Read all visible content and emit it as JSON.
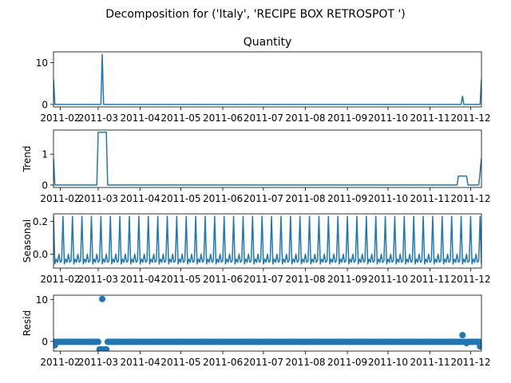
{
  "figure": {
    "suptitle": "Decomposition for ('Italy', 'RECIPE BOX RETROSPOT ')"
  },
  "chart_data": [
    {
      "type": "line",
      "title": "Quantity",
      "ylabel": "",
      "color": "#1f77b4",
      "xlim": [
        "2011-01-27",
        "2011-12-09"
      ],
      "ylim": [
        -0.6,
        12.6
      ],
      "yticks": [
        0,
        10
      ],
      "xticks": [
        "2011-02",
        "2011-03",
        "2011-04",
        "2011-05",
        "2011-06",
        "2011-07",
        "2011-08",
        "2011-09",
        "2011-10",
        "2011-11",
        "2011-12"
      ],
      "points": [
        {
          "x": "2011-01-27",
          "y": 6
        },
        {
          "x": "2011-01-28",
          "y": 0
        },
        {
          "x": "2011-03-03",
          "y": 0
        },
        {
          "x": "2011-03-04",
          "y": 12
        },
        {
          "x": "2011-03-05",
          "y": 0
        },
        {
          "x": "2011-11-24",
          "y": 0
        },
        {
          "x": "2011-11-25",
          "y": 2
        },
        {
          "x": "2011-11-26",
          "y": 0
        },
        {
          "x": "2011-12-08",
          "y": 0
        },
        {
          "x": "2011-12-09",
          "y": 6
        }
      ]
    },
    {
      "type": "line",
      "title": "",
      "ylabel": "Trend",
      "color": "#1f77b4",
      "xlim": [
        "2011-01-27",
        "2011-12-09"
      ],
      "ylim": [
        -0.08,
        1.78
      ],
      "yticks": [
        0,
        1
      ],
      "xticks": [
        "2011-02",
        "2011-03",
        "2011-04",
        "2011-05",
        "2011-06",
        "2011-07",
        "2011-08",
        "2011-09",
        "2011-10",
        "2011-11",
        "2011-12"
      ],
      "points": [
        {
          "x": "2011-01-27",
          "y": 0.86
        },
        {
          "x": "2011-01-28",
          "y": 0
        },
        {
          "x": "2011-02-28",
          "y": 0
        },
        {
          "x": "2011-03-01",
          "y": 1.71
        },
        {
          "x": "2011-03-07",
          "y": 1.71
        },
        {
          "x": "2011-03-08",
          "y": 0
        },
        {
          "x": "2011-11-21",
          "y": 0
        },
        {
          "x": "2011-11-22",
          "y": 0.29
        },
        {
          "x": "2011-11-28",
          "y": 0.29
        },
        {
          "x": "2011-11-29",
          "y": 0
        },
        {
          "x": "2011-12-07",
          "y": 0
        },
        {
          "x": "2011-12-09",
          "y": 0.86
        }
      ]
    },
    {
      "type": "line",
      "title": "",
      "ylabel": "Seasonal",
      "color": "#1f77b4",
      "xlim": [
        "2011-01-27",
        "2011-12-09"
      ],
      "ylim": [
        -0.085,
        0.245
      ],
      "yticks": [
        0.0,
        0.2
      ],
      "ytick_labels": [
        "0.0",
        "0.2"
      ],
      "xticks": [
        "2011-02",
        "2011-03",
        "2011-04",
        "2011-05",
        "2011-06",
        "2011-07",
        "2011-08",
        "2011-09",
        "2011-10",
        "2011-11",
        "2011-12"
      ],
      "period_days": 7,
      "weekly_pattern": [
        0.23,
        -0.06,
        -0.03,
        -0.05,
        0.0,
        -0.05,
        -0.04
      ]
    },
    {
      "type": "scatter",
      "title": "",
      "ylabel": "Resid",
      "color": "#1f77b4",
      "xlim": [
        "2011-01-27",
        "2011-12-09"
      ],
      "ylim": [
        -2.3,
        11.0
      ],
      "yticks": [
        0,
        10
      ],
      "xticks": [
        "2011-02",
        "2011-03",
        "2011-04",
        "2011-05",
        "2011-06",
        "2011-07",
        "2011-08",
        "2011-09",
        "2011-10",
        "2011-11",
        "2011-12"
      ],
      "baseline": -0.1,
      "outliers": [
        {
          "x": "2011-01-28",
          "y": -0.9
        },
        {
          "x": "2011-03-02",
          "y": -1.9
        },
        {
          "x": "2011-03-03",
          "y": -1.9
        },
        {
          "x": "2011-03-04",
          "y": 10.1
        },
        {
          "x": "2011-03-05",
          "y": -1.9
        },
        {
          "x": "2011-03-06",
          "y": -1.9
        },
        {
          "x": "2011-03-07",
          "y": -1.9
        },
        {
          "x": "2011-11-25",
          "y": 1.5
        },
        {
          "x": "2011-11-28",
          "y": -0.4
        },
        {
          "x": "2011-12-08",
          "y": -1.2
        }
      ]
    }
  ]
}
